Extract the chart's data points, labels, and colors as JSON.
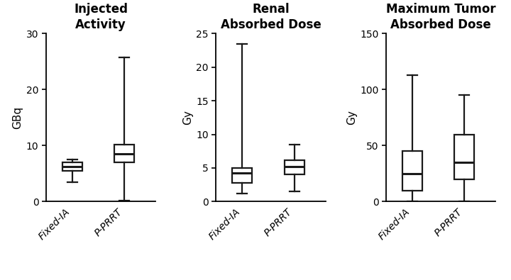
{
  "panels": [
    {
      "title": "Injected\nActivity",
      "ylabel": "GBq",
      "ylim": [
        0,
        30
      ],
      "yticks": [
        0,
        10,
        20,
        30
      ],
      "groups": [
        "Fixed-IA",
        "P-PRRT"
      ],
      "boxes": [
        {
          "whislo": 3.5,
          "q1": 5.5,
          "med": 6.2,
          "q3": 7.0,
          "whishi": 7.5
        },
        {
          "whislo": 0.2,
          "q1": 7.0,
          "med": 8.5,
          "q3": 10.2,
          "whishi": 25.8
        }
      ]
    },
    {
      "title": "Renal\nAbsorbed Dose",
      "ylabel": "Gy",
      "ylim": [
        0,
        25
      ],
      "yticks": [
        0,
        5,
        10,
        15,
        20,
        25
      ],
      "groups": [
        "Fixed-IA",
        "P-PRRT"
      ],
      "boxes": [
        {
          "whislo": 1.2,
          "q1": 2.8,
          "med": 4.3,
          "q3": 5.0,
          "whishi": 23.5
        },
        {
          "whislo": 1.5,
          "q1": 4.0,
          "med": 5.2,
          "q3": 6.2,
          "whishi": 8.5
        }
      ]
    },
    {
      "title": "Maximum Tumor\nAbsorbed Dose",
      "ylabel": "Gy",
      "ylim": [
        0,
        150
      ],
      "yticks": [
        0,
        50,
        100,
        150
      ],
      "groups": [
        "Fixed-IA",
        "P-PRRT"
      ],
      "boxes": [
        {
          "whislo": 0.5,
          "q1": 10.0,
          "med": 25.0,
          "q3": 45.0,
          "whishi": 113.0
        },
        {
          "whislo": 0.5,
          "q1": 20.0,
          "med": 35.0,
          "q3": 60.0,
          "whishi": 95.0
        }
      ]
    }
  ],
  "box_color": "#ffffff",
  "box_edgecolor": "#1a1a1a",
  "median_color": "#1a1a1a",
  "whisker_color": "#1a1a1a",
  "cap_color": "#1a1a1a",
  "linewidth": 1.6,
  "median_linewidth": 2.2,
  "box_width": 0.38,
  "title_fontsize": 12,
  "label_fontsize": 11,
  "tick_fontsize": 10,
  "xlabel_fontsize": 10,
  "background_color": "#ffffff"
}
